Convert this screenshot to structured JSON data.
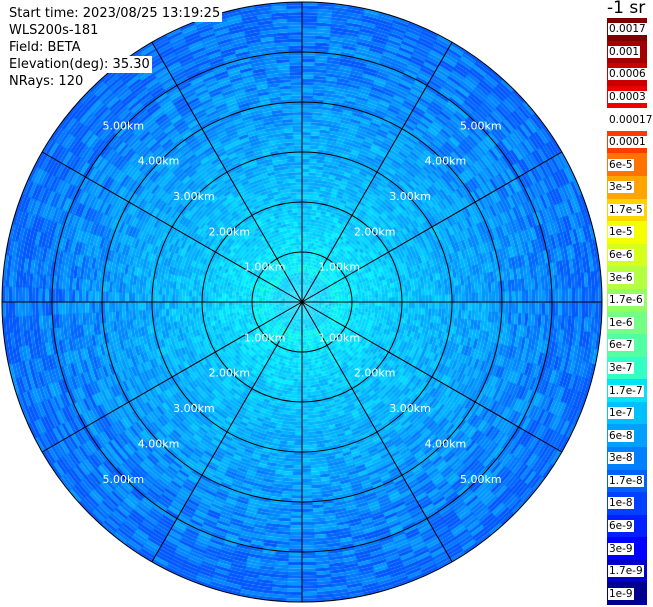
{
  "info": {
    "start_time": "Start time: 2023/08/25 13:19:25",
    "instrument": "WLS200s-181",
    "field": "Field: BETA",
    "elevation": "Elevation(deg): 35.30",
    "nrays": "NRays: 120"
  },
  "colorbar": {
    "title": "-1 sr",
    "labels": [
      "0.0017",
      "0.001",
      "0.0006",
      "0.0003",
      "0.00017",
      "0.0001",
      "6e-5",
      "3e-5",
      "1.7e-5",
      "1e-5",
      "6e-6",
      "3e-6",
      "1.7e-6",
      "1e-6",
      "6e-7",
      "3e-7",
      "1.7e-7",
      "1e-7",
      "6e-8",
      "3e-8",
      "1.7e-8",
      "1e-8",
      "6e-9",
      "3e-9",
      "1.7e-9",
      "1e-9"
    ],
    "colors": [
      "#800000",
      "#a50000",
      "#c80000",
      "#ee0000",
      "#ffffff",
      "#ff3c00",
      "#ff7400",
      "#ffa500",
      "#ffd400",
      "#f5ff00",
      "#d5ff1c",
      "#b5ff43",
      "#94ff63",
      "#74ff84",
      "#54ffa3",
      "#33ffc4",
      "#00e4f8",
      "#00c0ff",
      "#00a0ff",
      "#0080ff",
      "#0060ff",
      "#0040ff",
      "#0020ff",
      "#0000ff",
      "#0000cc",
      "#000090"
    ]
  },
  "chart_data": {
    "type": "heatmap",
    "projection": "polar PPI scan",
    "field": "BETA",
    "units": "-1 sr",
    "elevation_deg": 35.3,
    "n_rays": 120,
    "range_ring_labels": [
      "1.00km",
      "2.00km",
      "3.00km",
      "4.00km",
      "5.00km"
    ],
    "range_rings_km": [
      1,
      2,
      3,
      4,
      5
    ],
    "max_range_km": 6,
    "spokes_deg": [
      0,
      30,
      60,
      90,
      120,
      150,
      180,
      210,
      240,
      270,
      300,
      330
    ],
    "value_profile": [
      {
        "range_km": 0.5,
        "typical_beta": "3e-7"
      },
      {
        "range_km": 1.5,
        "typical_beta": "1.7e-7"
      },
      {
        "range_km": 2.5,
        "typical_beta": "1e-7"
      },
      {
        "range_km": 3.5,
        "typical_beta": "6e-8"
      },
      {
        "range_km": 4.5,
        "typical_beta": "3e-8"
      },
      {
        "range_km": 5.5,
        "typical_beta": "1.7e-8"
      }
    ]
  }
}
